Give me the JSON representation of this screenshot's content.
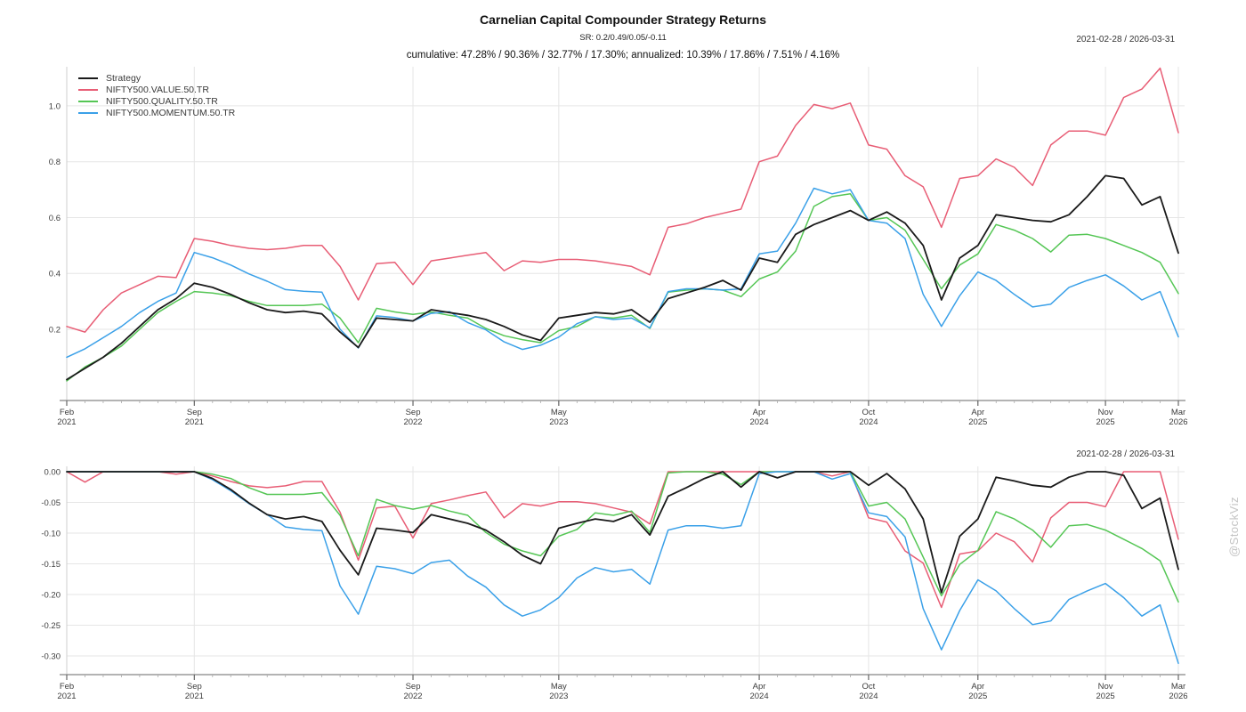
{
  "header": {
    "title": "Carnelian Capital Compounder Strategy Returns",
    "subtitle": "SR: 0.2/0.49/0.05/-0.11",
    "stats_line": "cumulative: 47.28% / 90.36% / 32.77% / 17.30%; annualized: 10.39% / 17.86% / 7.51% / 4.16%",
    "date_range": "2021-02-28 / 2026-03-31"
  },
  "watermark": "@StockViz",
  "legend": {
    "items": [
      {
        "label": "Strategy",
        "color": "#1a1a1a"
      },
      {
        "label": "NIFTY500.VALUE.50.TR",
        "color": "#e85d75"
      },
      {
        "label": "NIFTY500.QUALITY.50.TR",
        "color": "#55c655"
      },
      {
        "label": "NIFTY500.MOMENTUM.50.TR",
        "color": "#3aa0e8"
      }
    ]
  },
  "chart_data": [
    {
      "id": "cumulative-returns",
      "type": "line",
      "title": "cumulative returns",
      "date_range": "2021-02-28 / 2026-03-31",
      "grid": true,
      "legend_position": "top-left",
      "ylim": [
        -0.055,
        1.14
      ],
      "y_ticks": [
        {
          "value": 0.2,
          "label": "0.2"
        },
        {
          "value": 0.4,
          "label": "0.4"
        },
        {
          "value": 0.6,
          "label": "0.6"
        },
        {
          "value": 0.8,
          "label": "0.8"
        },
        {
          "value": 1.0,
          "label": "1.0"
        }
      ],
      "x_ticks": [
        {
          "index": 0,
          "month": "Feb",
          "year": "2021"
        },
        {
          "index": 7,
          "month": "Sep",
          "year": "2021"
        },
        {
          "index": 19,
          "month": "Sep",
          "year": "2022"
        },
        {
          "index": 27,
          "month": "May",
          "year": "2023"
        },
        {
          "index": 38,
          "month": "Apr",
          "year": "2024"
        },
        {
          "index": 44,
          "month": "Oct",
          "year": "2024"
        },
        {
          "index": 50,
          "month": "Apr",
          "year": "2025"
        },
        {
          "index": 57,
          "month": "Nov",
          "year": "2025"
        },
        {
          "index": 61,
          "month": "Mar",
          "year": "2026"
        }
      ],
      "x_months": [
        "2021-02",
        "2021-03",
        "2021-04",
        "2021-05",
        "2021-06",
        "2021-07",
        "2021-08",
        "2021-09",
        "2021-10",
        "2021-11",
        "2021-12",
        "2022-01",
        "2022-02",
        "2022-03",
        "2022-04",
        "2022-05",
        "2022-06",
        "2022-07",
        "2022-08",
        "2022-09",
        "2022-10",
        "2022-11",
        "2022-12",
        "2023-01",
        "2023-02",
        "2023-03",
        "2023-04",
        "2023-05",
        "2023-06",
        "2023-07",
        "2023-08",
        "2023-09",
        "2023-10",
        "2023-11",
        "2023-12",
        "2024-01",
        "2024-02",
        "2024-03",
        "2024-04",
        "2024-05",
        "2024-06",
        "2024-07",
        "2024-08",
        "2024-09",
        "2024-10",
        "2024-11",
        "2024-12",
        "2025-01",
        "2025-02",
        "2025-03",
        "2025-04",
        "2025-05",
        "2025-06",
        "2025-07",
        "2025-08",
        "2025-09",
        "2025-10",
        "2025-11",
        "2025-12",
        "2026-01",
        "2026-02",
        "2026-03"
      ],
      "series": [
        {
          "name": "Strategy",
          "color": "#1a1a1a",
          "width": 1.8,
          "values": [
            0.02,
            0.06,
            0.1,
            0.15,
            0.21,
            0.27,
            0.31,
            0.365,
            0.35,
            0.325,
            0.295,
            0.27,
            0.26,
            0.265,
            0.255,
            0.19,
            0.135,
            0.24,
            0.235,
            0.23,
            0.27,
            0.26,
            0.25,
            0.235,
            0.21,
            0.18,
            0.16,
            0.24,
            0.25,
            0.26,
            0.255,
            0.27,
            0.225,
            0.31,
            0.33,
            0.35,
            0.375,
            0.34,
            0.455,
            0.44,
            0.54,
            0.575,
            0.6,
            0.625,
            0.59,
            0.62,
            0.58,
            0.5,
            0.305,
            0.455,
            0.5,
            0.61,
            0.6,
            0.59,
            0.585,
            0.61,
            0.675,
            0.75,
            0.74,
            0.645,
            0.675,
            0.473
          ]
        },
        {
          "name": "NIFTY500.VALUE.50.TR",
          "color": "#e85d75",
          "width": 1.5,
          "values": [
            0.21,
            0.19,
            0.27,
            0.33,
            0.36,
            0.39,
            0.385,
            0.525,
            0.515,
            0.5,
            0.49,
            0.485,
            0.49,
            0.5,
            0.5,
            0.425,
            0.305,
            0.435,
            0.44,
            0.36,
            0.445,
            0.455,
            0.465,
            0.475,
            0.41,
            0.445,
            0.44,
            0.45,
            0.45,
            0.445,
            0.435,
            0.425,
            0.395,
            0.565,
            0.578,
            0.6,
            0.615,
            0.63,
            0.8,
            0.82,
            0.93,
            1.005,
            0.99,
            1.01,
            0.86,
            0.845,
            0.75,
            0.71,
            0.565,
            0.74,
            0.75,
            0.81,
            0.78,
            0.715,
            0.86,
            0.91,
            0.91,
            0.895,
            1.03,
            1.06,
            1.135,
            0.904
          ]
        },
        {
          "name": "NIFTY500.QUALITY.50.TR",
          "color": "#55c655",
          "width": 1.5,
          "values": [
            0.015,
            0.065,
            0.1,
            0.14,
            0.2,
            0.26,
            0.3,
            0.335,
            0.33,
            0.32,
            0.3,
            0.285,
            0.285,
            0.285,
            0.29,
            0.24,
            0.152,
            0.275,
            0.262,
            0.253,
            0.262,
            0.25,
            0.24,
            0.203,
            0.177,
            0.163,
            0.152,
            0.195,
            0.21,
            0.245,
            0.24,
            0.25,
            0.203,
            0.333,
            0.34,
            0.345,
            0.34,
            0.317,
            0.38,
            0.405,
            0.48,
            0.64,
            0.675,
            0.685,
            0.59,
            0.6,
            0.555,
            0.45,
            0.345,
            0.43,
            0.47,
            0.575,
            0.555,
            0.525,
            0.477,
            0.537,
            0.54,
            0.525,
            0.5,
            0.475,
            0.44,
            0.328
          ]
        },
        {
          "name": "NIFTY500.MOMENTUM.50.TR",
          "color": "#3aa0e8",
          "width": 1.5,
          "values": [
            0.1,
            0.13,
            0.17,
            0.21,
            0.26,
            0.3,
            0.33,
            0.475,
            0.456,
            0.43,
            0.398,
            0.372,
            0.342,
            0.336,
            0.333,
            0.2,
            0.133,
            0.248,
            0.242,
            0.23,
            0.257,
            0.263,
            0.224,
            0.198,
            0.155,
            0.128,
            0.143,
            0.172,
            0.22,
            0.245,
            0.235,
            0.24,
            0.205,
            0.335,
            0.345,
            0.345,
            0.34,
            0.345,
            0.47,
            0.48,
            0.58,
            0.705,
            0.685,
            0.7,
            0.59,
            0.58,
            0.525,
            0.325,
            0.21,
            0.32,
            0.405,
            0.375,
            0.325,
            0.28,
            0.29,
            0.35,
            0.375,
            0.395,
            0.355,
            0.305,
            0.335,
            0.173
          ]
        }
      ]
    },
    {
      "id": "drawdowns",
      "type": "line",
      "title": "drawdowns",
      "date_range": "2021-02-28 / 2026-03-31",
      "grid": true,
      "ylim": [
        -0.3304,
        0.0087
      ],
      "y_ticks": [
        {
          "value": 0.0,
          "label": "0.00"
        },
        {
          "value": -0.05,
          "label": "-0.05"
        },
        {
          "value": -0.1,
          "label": "-0.10"
        },
        {
          "value": -0.15,
          "label": "-0.15"
        },
        {
          "value": -0.2,
          "label": "-0.20"
        },
        {
          "value": -0.25,
          "label": "-0.25"
        },
        {
          "value": -0.3,
          "label": "-0.30"
        }
      ],
      "x_ticks": [
        {
          "index": 0,
          "month": "Feb",
          "year": "2021"
        },
        {
          "index": 7,
          "month": "Sep",
          "year": "2021"
        },
        {
          "index": 19,
          "month": "Sep",
          "year": "2022"
        },
        {
          "index": 27,
          "month": "May",
          "year": "2023"
        },
        {
          "index": 38,
          "month": "Apr",
          "year": "2024"
        },
        {
          "index": 44,
          "month": "Oct",
          "year": "2024"
        },
        {
          "index": 50,
          "month": "Apr",
          "year": "2025"
        },
        {
          "index": 57,
          "month": "Nov",
          "year": "2025"
        },
        {
          "index": 61,
          "month": "Mar",
          "year": "2026"
        }
      ],
      "x_months": [
        "2021-02",
        "2021-03",
        "2021-04",
        "2021-05",
        "2021-06",
        "2021-07",
        "2021-08",
        "2021-09",
        "2021-10",
        "2021-11",
        "2021-12",
        "2022-01",
        "2022-02",
        "2022-03",
        "2022-04",
        "2022-05",
        "2022-06",
        "2022-07",
        "2022-08",
        "2022-09",
        "2022-10",
        "2022-11",
        "2022-12",
        "2023-01",
        "2023-02",
        "2023-03",
        "2023-04",
        "2023-05",
        "2023-06",
        "2023-07",
        "2023-08",
        "2023-09",
        "2023-10",
        "2023-11",
        "2023-12",
        "2024-01",
        "2024-02",
        "2024-03",
        "2024-04",
        "2024-05",
        "2024-06",
        "2024-07",
        "2024-08",
        "2024-09",
        "2024-10",
        "2024-11",
        "2024-12",
        "2025-01",
        "2025-02",
        "2025-03",
        "2025-04",
        "2025-05",
        "2025-06",
        "2025-07",
        "2025-08",
        "2025-09",
        "2025-10",
        "2025-11",
        "2025-12",
        "2026-01",
        "2026-02",
        "2026-03"
      ],
      "series": [
        {
          "name": "Strategy",
          "color": "#1a1a1a",
          "width": 1.8,
          "values": [
            0,
            0,
            0,
            0,
            0,
            0,
            0,
            0,
            -0.011,
            -0.029,
            -0.051,
            -0.07,
            -0.077,
            -0.073,
            -0.081,
            -0.128,
            -0.168,
            -0.092,
            -0.095,
            -0.099,
            -0.07,
            -0.077,
            -0.084,
            -0.095,
            -0.114,
            -0.136,
            -0.15,
            -0.092,
            -0.084,
            -0.077,
            -0.081,
            -0.07,
            -0.103,
            -0.04,
            -0.026,
            -0.011,
            0,
            -0.025,
            0,
            -0.01,
            0,
            0,
            0,
            0,
            -0.022,
            -0.003,
            -0.028,
            -0.077,
            -0.197,
            -0.105,
            -0.077,
            -0.009,
            -0.015,
            -0.022,
            -0.025,
            -0.009,
            0,
            0,
            -0.006,
            -0.06,
            -0.043,
            -0.159
          ]
        },
        {
          "name": "NIFTY500.VALUE.50.TR",
          "color": "#e85d75",
          "width": 1.5,
          "values": [
            0,
            -0.017,
            0,
            0,
            0,
            0,
            -0.004,
            0,
            -0.007,
            -0.016,
            -0.023,
            -0.026,
            -0.023,
            -0.016,
            -0.016,
            -0.066,
            -0.144,
            -0.059,
            -0.056,
            -0.108,
            -0.052,
            -0.046,
            -0.039,
            -0.033,
            -0.075,
            -0.052,
            -0.056,
            -0.049,
            -0.049,
            -0.052,
            -0.059,
            -0.066,
            -0.085,
            0,
            0,
            0,
            0,
            0,
            0,
            0,
            0,
            0,
            -0.007,
            0,
            -0.075,
            -0.082,
            -0.129,
            -0.149,
            -0.221,
            -0.134,
            -0.129,
            -0.1,
            -0.114,
            -0.147,
            -0.075,
            -0.05,
            -0.05,
            -0.057,
            0,
            0,
            0,
            -0.11
          ]
        },
        {
          "name": "NIFTY500.QUALITY.50.TR",
          "color": "#55c655",
          "width": 1.5,
          "values": [
            0,
            0,
            0,
            0,
            0,
            0,
            0,
            0,
            -0.004,
            -0.011,
            -0.026,
            -0.037,
            -0.037,
            -0.037,
            -0.034,
            -0.071,
            -0.137,
            -0.045,
            -0.055,
            -0.061,
            -0.055,
            -0.064,
            -0.071,
            -0.099,
            -0.118,
            -0.129,
            -0.137,
            -0.105,
            -0.094,
            -0.067,
            -0.071,
            -0.064,
            -0.099,
            -0.002,
            0,
            0,
            -0.004,
            -0.021,
            0,
            0,
            0,
            0,
            0,
            0,
            -0.056,
            -0.05,
            -0.077,
            -0.139,
            -0.202,
            -0.151,
            -0.128,
            -0.065,
            -0.077,
            -0.095,
            -0.123,
            -0.088,
            -0.086,
            -0.095,
            -0.11,
            -0.125,
            -0.145,
            -0.212
          ]
        },
        {
          "name": "NIFTY500.MOMENTUM.50.TR",
          "color": "#3aa0e8",
          "width": 1.5,
          "values": [
            0,
            0,
            0,
            0,
            0,
            0,
            0,
            0,
            -0.013,
            -0.031,
            -0.052,
            -0.07,
            -0.09,
            -0.094,
            -0.096,
            -0.186,
            -0.232,
            -0.154,
            -0.158,
            -0.166,
            -0.148,
            -0.144,
            -0.17,
            -0.188,
            -0.217,
            -0.235,
            -0.225,
            -0.205,
            -0.173,
            -0.156,
            -0.163,
            -0.159,
            -0.183,
            -0.095,
            -0.088,
            -0.088,
            -0.092,
            -0.088,
            -0.003,
            0,
            0,
            0,
            -0.012,
            -0.003,
            -0.067,
            -0.073,
            -0.106,
            -0.223,
            -0.29,
            -0.226,
            -0.176,
            -0.194,
            -0.223,
            -0.249,
            -0.243,
            -0.208,
            -0.194,
            -0.182,
            -0.205,
            -0.235,
            -0.217,
            -0.312
          ]
        }
      ]
    }
  ]
}
